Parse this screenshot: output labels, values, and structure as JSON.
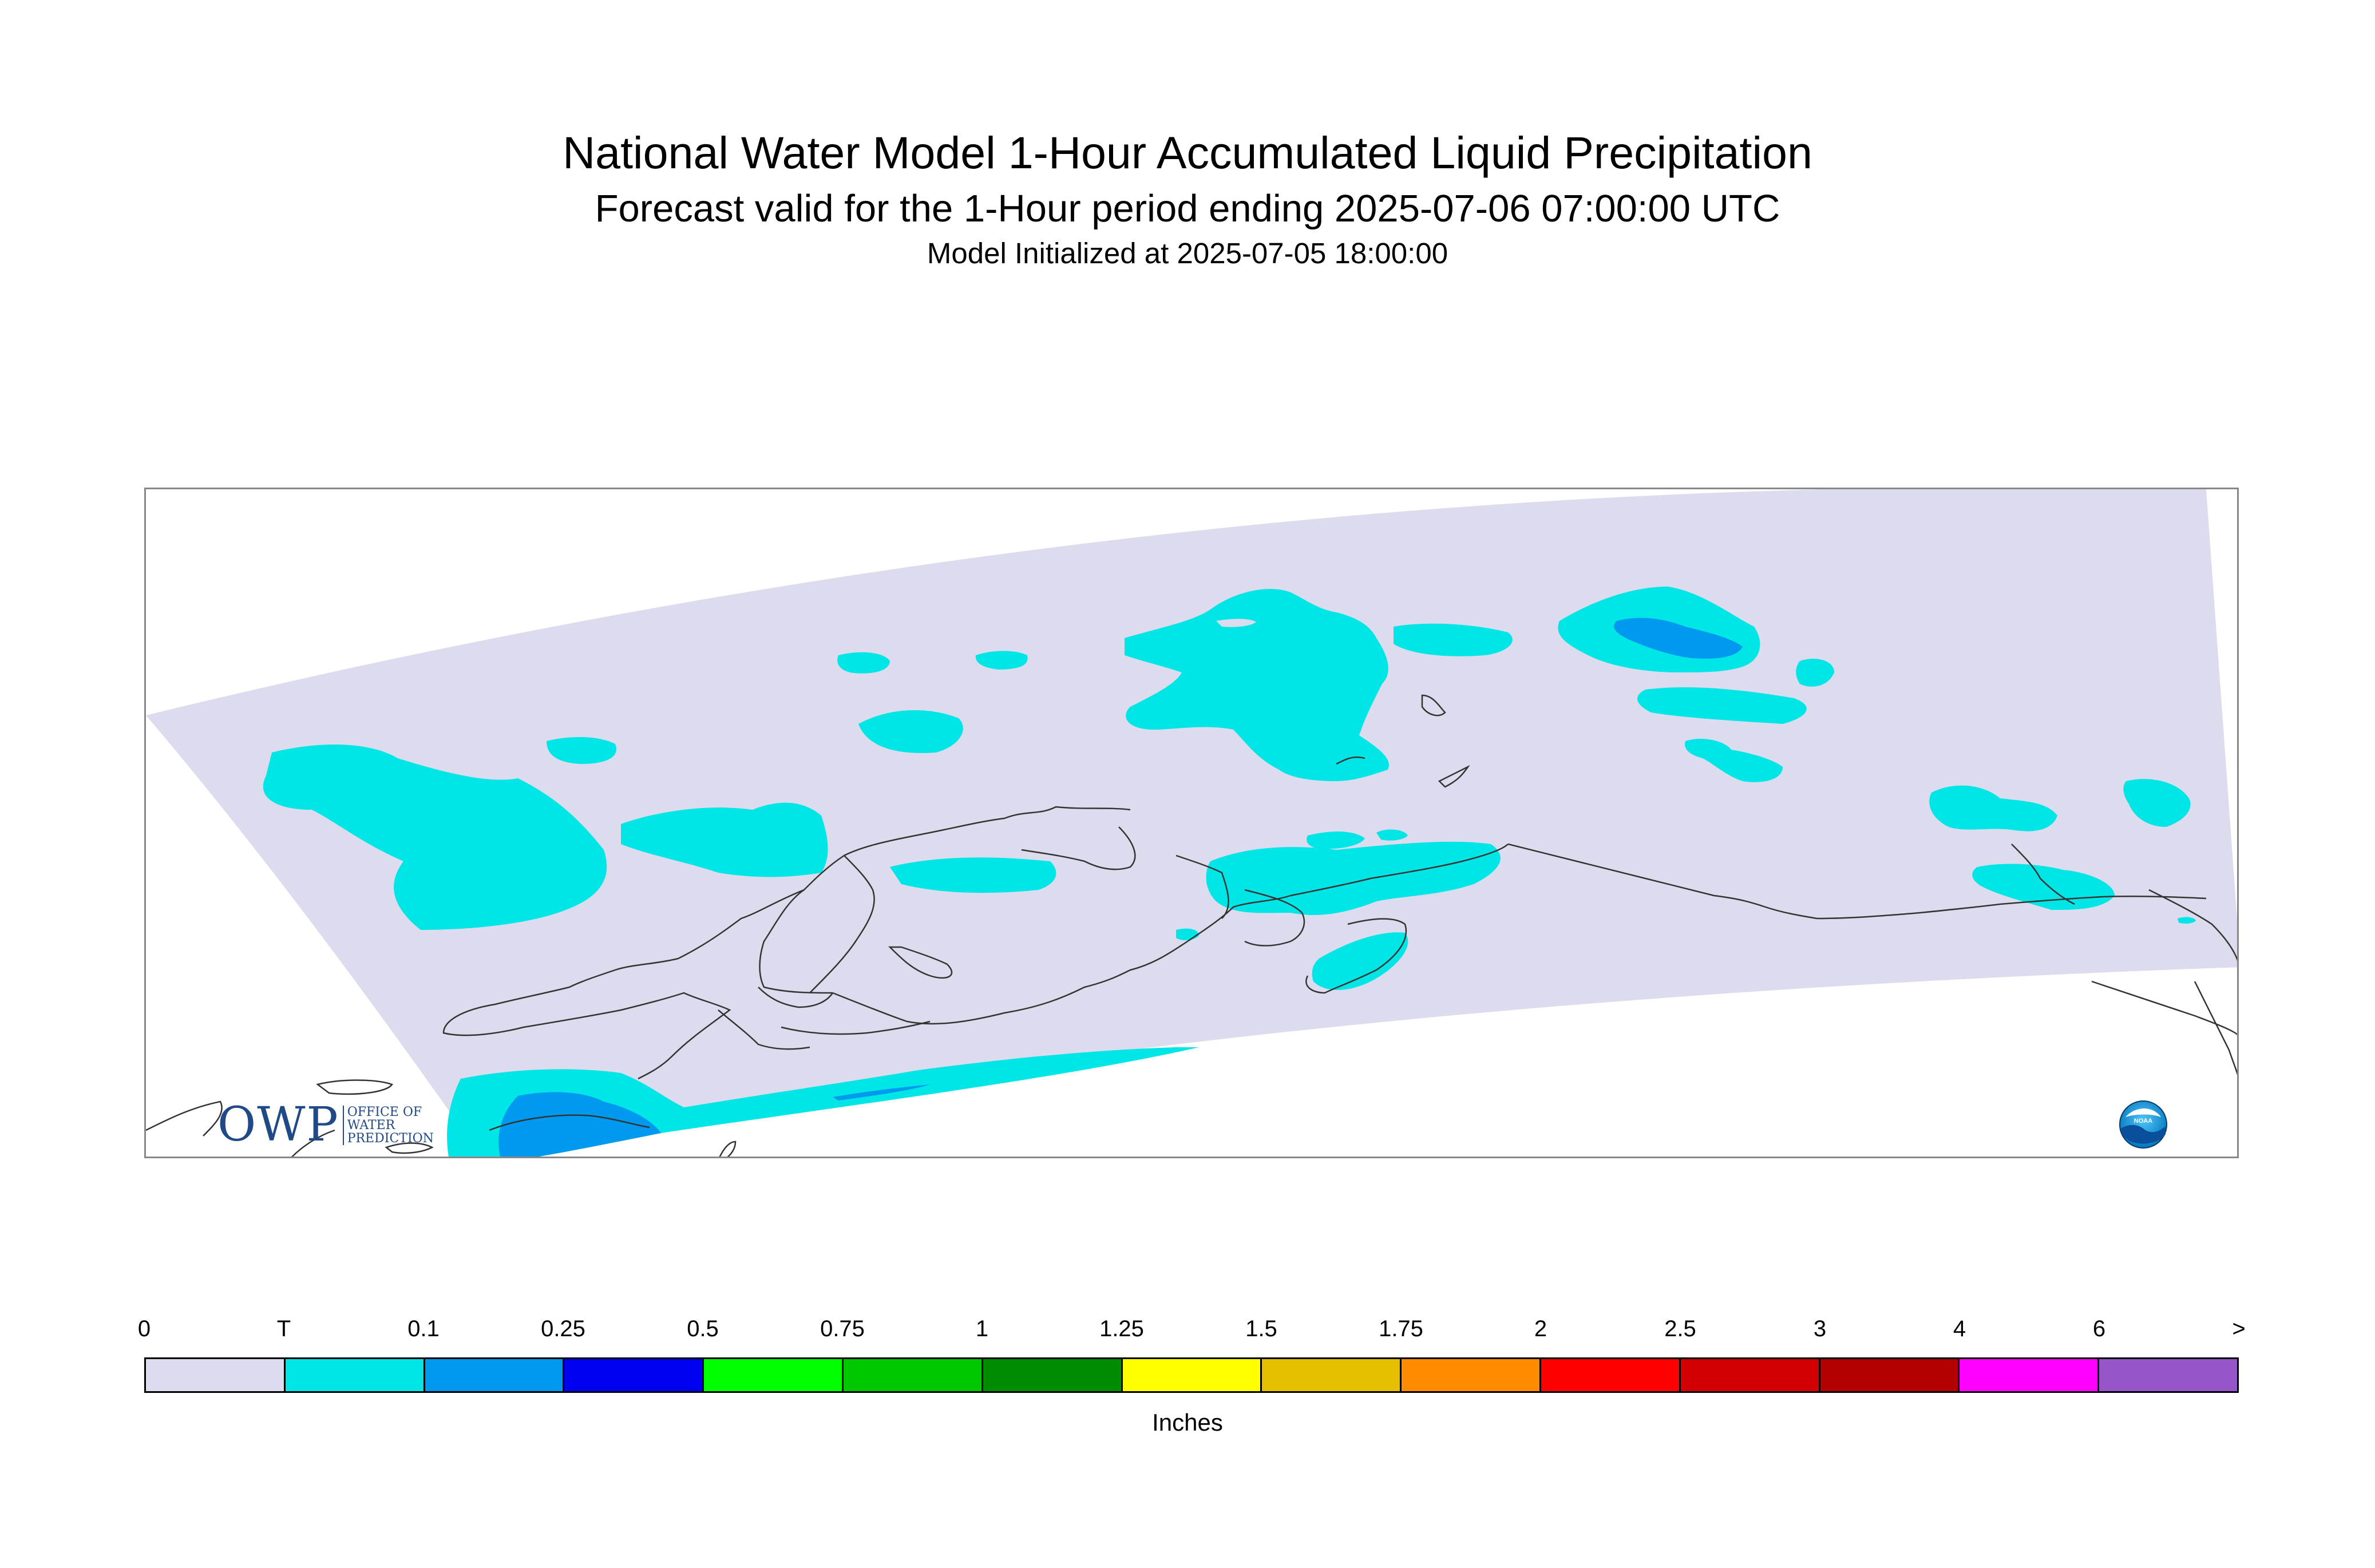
{
  "header": {
    "title": "National Water Model 1-Hour Accumulated Liquid Precipitation",
    "subtitle": "Forecast valid for the 1-Hour period ending 2025-07-06 07:00:00 UTC",
    "init": "Model Initialized at 2025-07-05 18:00:00"
  },
  "legend": {
    "units": "Inches",
    "ticks": [
      "0",
      "T",
      "0.1",
      "0.25",
      "0.5",
      "0.75",
      "1",
      "1.25",
      "1.5",
      "1.75",
      "2",
      "2.5",
      "3",
      "4",
      "6",
      ">"
    ],
    "colors": [
      "#dcdcee",
      "#00e5e5",
      "#0099f0",
      "#0000f0",
      "#00ff00",
      "#00c800",
      "#008c00",
      "#ffff00",
      "#e6be00",
      "#ff8c00",
      "#ff0000",
      "#d20000",
      "#b40000",
      "#ff00ff",
      "#9655c8"
    ]
  },
  "map": {
    "domain_fill": "#dcdcee",
    "light_precip": "#00e5e5",
    "moderate_precip": "#0099f0",
    "coastline": "#333333"
  },
  "logos": {
    "owp_mark": "OWP",
    "owp_text": [
      "OFFICE OF",
      "WATER",
      "PREDICTION"
    ],
    "noaa": "NOAA"
  }
}
